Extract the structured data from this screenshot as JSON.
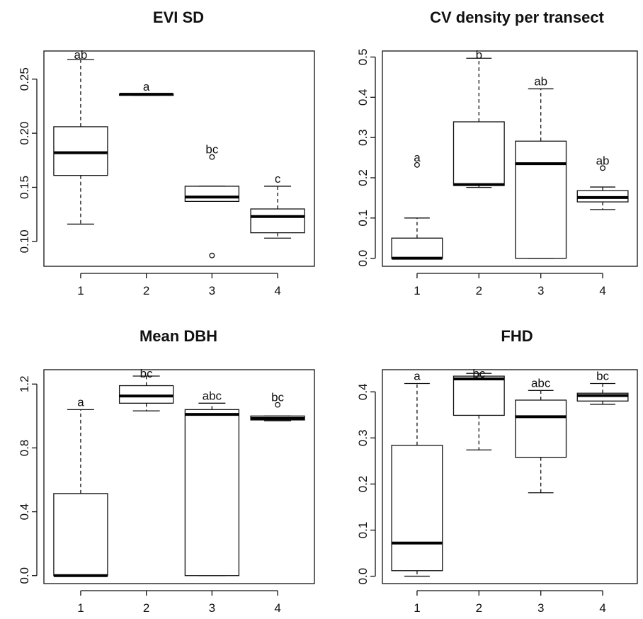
{
  "chart_data": [
    {
      "type": "boxplot",
      "title": "EVI SD",
      "categories": [
        "1",
        "2",
        "3",
        "4"
      ],
      "yticks": [
        "0.10",
        "0.15",
        "0.20",
        "0.25"
      ],
      "ylim": [
        0.077,
        0.276
      ],
      "boxes": [
        {
          "min": 0.116,
          "q1": 0.161,
          "median": 0.182,
          "q3": 0.206,
          "max": 0.268,
          "outliers": [],
          "letter": "ab"
        },
        {
          "min": 0.235,
          "q1": 0.235,
          "median": 0.236,
          "q3": 0.236,
          "max": 0.236,
          "outliers": [],
          "letter": "a"
        },
        {
          "min": 0.137,
          "q1": 0.137,
          "median": 0.141,
          "q3": 0.151,
          "max": 0.151,
          "outliers": [
            0.178,
            0.087
          ],
          "letter": "bc"
        },
        {
          "min": 0.103,
          "q1": 0.108,
          "median": 0.123,
          "q3": 0.13,
          "max": 0.151,
          "outliers": [],
          "letter": "c"
        }
      ]
    },
    {
      "type": "boxplot",
      "title": "CV density per transect",
      "categories": [
        "1",
        "2",
        "3",
        "4"
      ],
      "yticks": [
        "0.0",
        "0.1",
        "0.2",
        "0.3",
        "0.4",
        "0.5"
      ],
      "ylim": [
        -0.02,
        0.515
      ],
      "boxes": [
        {
          "min": 0.0,
          "q1": 0.0,
          "median": 0.0,
          "q3": 0.05,
          "max": 0.1,
          "outliers": [
            0.232
          ],
          "letter": "a"
        },
        {
          "min": 0.176,
          "q1": 0.181,
          "median": 0.183,
          "q3": 0.339,
          "max": 0.497,
          "outliers": [],
          "letter": "b"
        },
        {
          "min": 0.0,
          "q1": 0.0,
          "median": 0.235,
          "q3": 0.291,
          "max": 0.421,
          "outliers": [],
          "letter": "ab"
        },
        {
          "min": 0.121,
          "q1": 0.14,
          "median": 0.151,
          "q3": 0.168,
          "max": 0.177,
          "outliers": [
            0.224
          ],
          "letter": "ab"
        }
      ]
    },
    {
      "type": "boxplot",
      "title": "Mean DBH",
      "categories": [
        "1",
        "2",
        "3",
        "4"
      ],
      "yticks": [
        "0.0",
        "0.4",
        "0.8",
        "1.2"
      ],
      "ylim": [
        -0.05,
        1.29
      ],
      "boxes": [
        {
          "min": 0.0,
          "q1": 0.0,
          "median": 0.0,
          "q3": 0.514,
          "max": 1.04,
          "outliers": [],
          "letter": "a"
        },
        {
          "min": 1.032,
          "q1": 1.08,
          "median": 1.125,
          "q3": 1.19,
          "max": 1.25,
          "outliers": [],
          "letter": "bc"
        },
        {
          "min": 0.0,
          "q1": 0.0,
          "median": 1.01,
          "q3": 1.04,
          "max": 1.08,
          "outliers": [],
          "letter": "abc"
        },
        {
          "min": 0.97,
          "q1": 0.975,
          "median": 0.985,
          "q3": 1.0,
          "max": 1.0,
          "outliers": [
            1.07
          ],
          "letter": "bc"
        }
      ]
    },
    {
      "type": "boxplot",
      "title": "FHD",
      "categories": [
        "1",
        "2",
        "3",
        "4"
      ],
      "yticks": [
        "0.0",
        "0.1",
        "0.2",
        "0.3",
        "0.4"
      ],
      "ylim": [
        -0.016,
        0.448
      ],
      "boxes": [
        {
          "min": 0.0,
          "q1": 0.012,
          "median": 0.072,
          "q3": 0.284,
          "max": 0.418,
          "outliers": [],
          "letter": "a"
        },
        {
          "min": 0.274,
          "q1": 0.349,
          "median": 0.428,
          "q3": 0.434,
          "max": 0.44,
          "outliers": [],
          "letter": "bc"
        },
        {
          "min": 0.181,
          "q1": 0.258,
          "median": 0.346,
          "q3": 0.382,
          "max": 0.403,
          "outliers": [],
          "letter": "abc"
        },
        {
          "min": 0.373,
          "q1": 0.38,
          "median": 0.392,
          "q3": 0.397,
          "max": 0.418,
          "outliers": [],
          "letter": "bc"
        }
      ]
    }
  ]
}
